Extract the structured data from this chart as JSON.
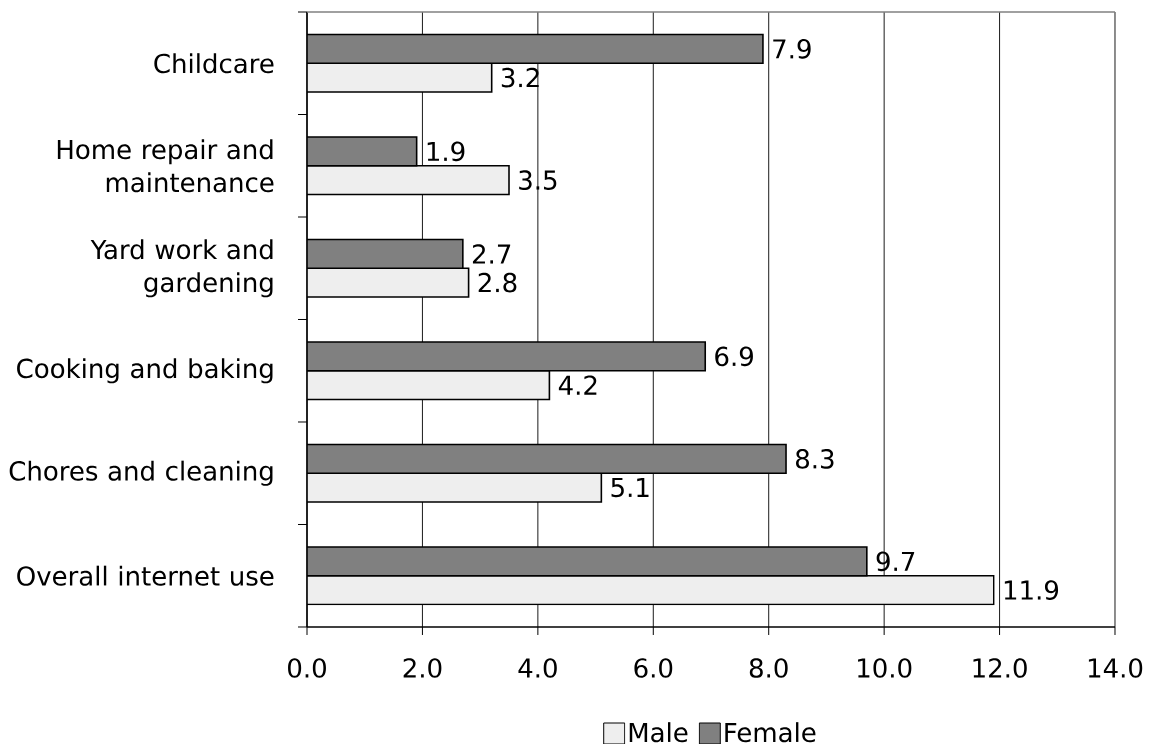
{
  "chart_data": {
    "type": "bar",
    "orientation": "horizontal",
    "categories": [
      "Childcare",
      "Home repair and maintenance",
      "Yard work and gardening",
      "Cooking and baking",
      "Chores and cleaning",
      "Overall internet use"
    ],
    "series": [
      {
        "name": "Male",
        "color": "#eeeeee",
        "values": [
          3.2,
          3.5,
          2.8,
          4.2,
          5.1,
          11.9
        ]
      },
      {
        "name": "Female",
        "color": "#808080",
        "values": [
          7.9,
          1.9,
          2.7,
          6.9,
          8.3,
          9.7
        ]
      }
    ],
    "xlim": [
      0,
      14
    ],
    "xticks": [
      {
        "value": 0,
        "label": "0.0"
      },
      {
        "value": 2,
        "label": "2.0"
      },
      {
        "value": 4,
        "label": "4.0"
      },
      {
        "value": 6,
        "label": "6.0"
      },
      {
        "value": 8,
        "label": "8.0"
      },
      {
        "value": 10,
        "label": "10.0"
      },
      {
        "value": 12,
        "label": "12.0"
      },
      {
        "value": 14,
        "label": "14.0"
      }
    ],
    "grid": "x",
    "legend": "bottom",
    "data_labels": true
  }
}
